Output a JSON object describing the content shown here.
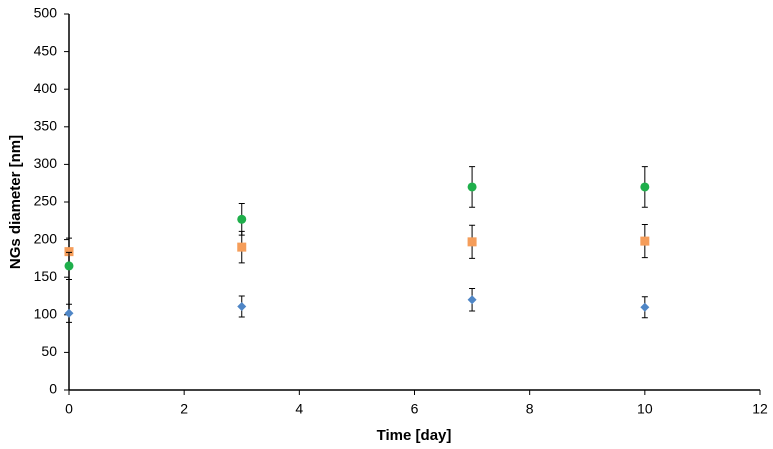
{
  "chart_data": {
    "type": "scatter",
    "x_label": "Time [day]",
    "y_label": "NGs diameter [nm]",
    "x": [
      0,
      3,
      7,
      10
    ],
    "series": [
      {
        "marker": "diamond",
        "color": "#4f86c6",
        "values": [
          102,
          111,
          120,
          110
        ],
        "errors": [
          12,
          14,
          15,
          14
        ]
      },
      {
        "marker": "square",
        "color": "#f59d5a",
        "values": [
          184,
          190,
          197,
          198
        ],
        "errors": [
          18,
          21,
          22,
          22
        ]
      },
      {
        "marker": "circle",
        "color": "#1faf4b",
        "values": [
          165,
          227,
          270,
          270
        ],
        "errors": [
          18,
          21,
          27,
          27
        ]
      }
    ],
    "xlim": [
      0,
      12
    ],
    "xticks": [
      0,
      2,
      4,
      6,
      8,
      10,
      12
    ],
    "ylim": [
      0,
      500
    ],
    "yticks": [
      0,
      50,
      100,
      150,
      200,
      250,
      300,
      350,
      400,
      450,
      500
    ],
    "grid": false
  }
}
